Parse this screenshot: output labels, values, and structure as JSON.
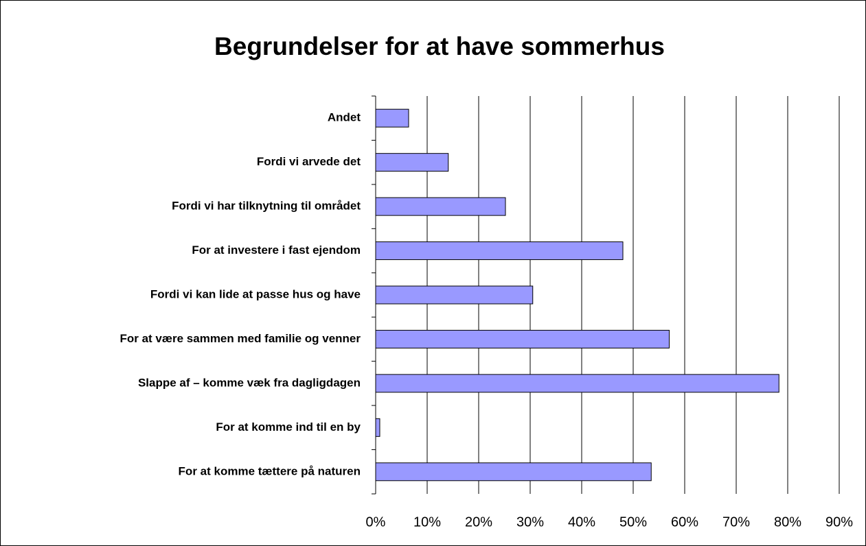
{
  "chart_data": {
    "type": "barh",
    "title": "Begrundelser for at have sommerhus",
    "categories": [
      "Andet",
      "Fordi vi arvede det",
      "Fordi vi har tilknytning til området",
      "For at investere i fast ejendom",
      "Fordi vi kan lide at passe hus og have",
      "For at være sammen med familie og venner",
      "Slappe af – komme væk fra dagligdagen",
      "For at komme ind til en by",
      "For at komme tættere på naturen"
    ],
    "values": [
      6.4,
      14.1,
      25.2,
      48.0,
      30.5,
      57.0,
      78.3,
      0.8,
      53.5
    ],
    "color": "#9999ff",
    "xlim": [
      0,
      90
    ],
    "xticks": [
      {
        "value": 0,
        "label": "0%"
      },
      {
        "value": 10,
        "label": "10%"
      },
      {
        "value": 20,
        "label": "20%"
      },
      {
        "value": 30,
        "label": "30%"
      },
      {
        "value": 40,
        "label": "40%"
      },
      {
        "value": 50,
        "label": "50%"
      },
      {
        "value": 60,
        "label": "60%"
      },
      {
        "value": 70,
        "label": "70%"
      },
      {
        "value": 80,
        "label": "80%"
      },
      {
        "value": 90,
        "label": "90%"
      }
    ],
    "grid": true
  }
}
